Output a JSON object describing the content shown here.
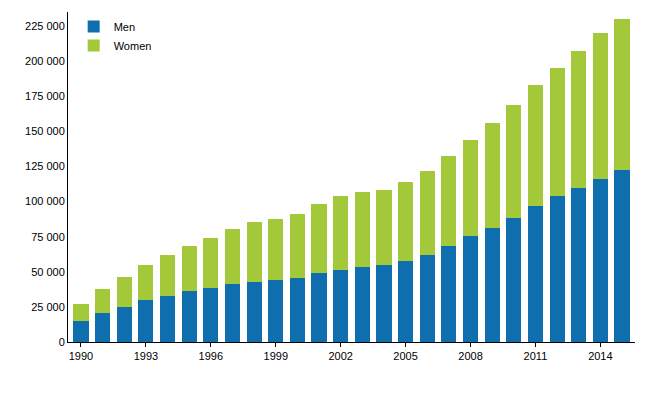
{
  "chart_data": {
    "type": "bar",
    "stacked": true,
    "grid": false,
    "legend": "upper left",
    "x": [
      1990,
      1991,
      1992,
      1993,
      1994,
      1995,
      1996,
      1997,
      1998,
      1999,
      2000,
      2001,
      2002,
      2003,
      2004,
      2005,
      2006,
      2007,
      2008,
      2009,
      2010,
      2011,
      2012,
      2013,
      2014,
      2015
    ],
    "xlim": [
      1989.4,
      2015.6
    ],
    "xticks": [
      1990,
      1993,
      1996,
      1999,
      2002,
      2005,
      2008,
      2011,
      2014
    ],
    "ylim": [
      0,
      235000
    ],
    "yticks": [
      0,
      {
        "value": 25000,
        "label": "25 000"
      },
      {
        "value": 50000,
        "label": "50 000"
      },
      {
        "value": 75000,
        "label": "75 000"
      },
      {
        "value": 100000,
        "label": "100 000"
      },
      {
        "value": 125000,
        "label": "125 000"
      },
      {
        "value": 150000,
        "label": "150 000"
      },
      {
        "value": 175000,
        "label": "175 000"
      },
      {
        "value": 200000,
        "label": "200 000"
      },
      {
        "value": 225000,
        "label": "225 000"
      }
    ],
    "series": [
      {
        "name": "Men",
        "color": "#0f6fae",
        "values": [
          15000,
          21000,
          25000,
          30000,
          33000,
          36000,
          38500,
          41000,
          43000,
          44500,
          45500,
          49000,
          51500,
          53500,
          54500,
          57500,
          62000,
          68500,
          75500,
          81500,
          88500,
          97000,
          104000,
          110000,
          116000,
          122500
        ]
      },
      {
        "name": "Women",
        "color": "#a3c83a",
        "values": [
          12000,
          16500,
          21000,
          25000,
          29000,
          32500,
          35500,
          39500,
          42500,
          43000,
          45500,
          49500,
          52500,
          53500,
          54000,
          56500,
          60000,
          64000,
          68000,
          74500,
          80000,
          86000,
          91000,
          97500,
          104000,
          107500
        ]
      }
    ]
  }
}
